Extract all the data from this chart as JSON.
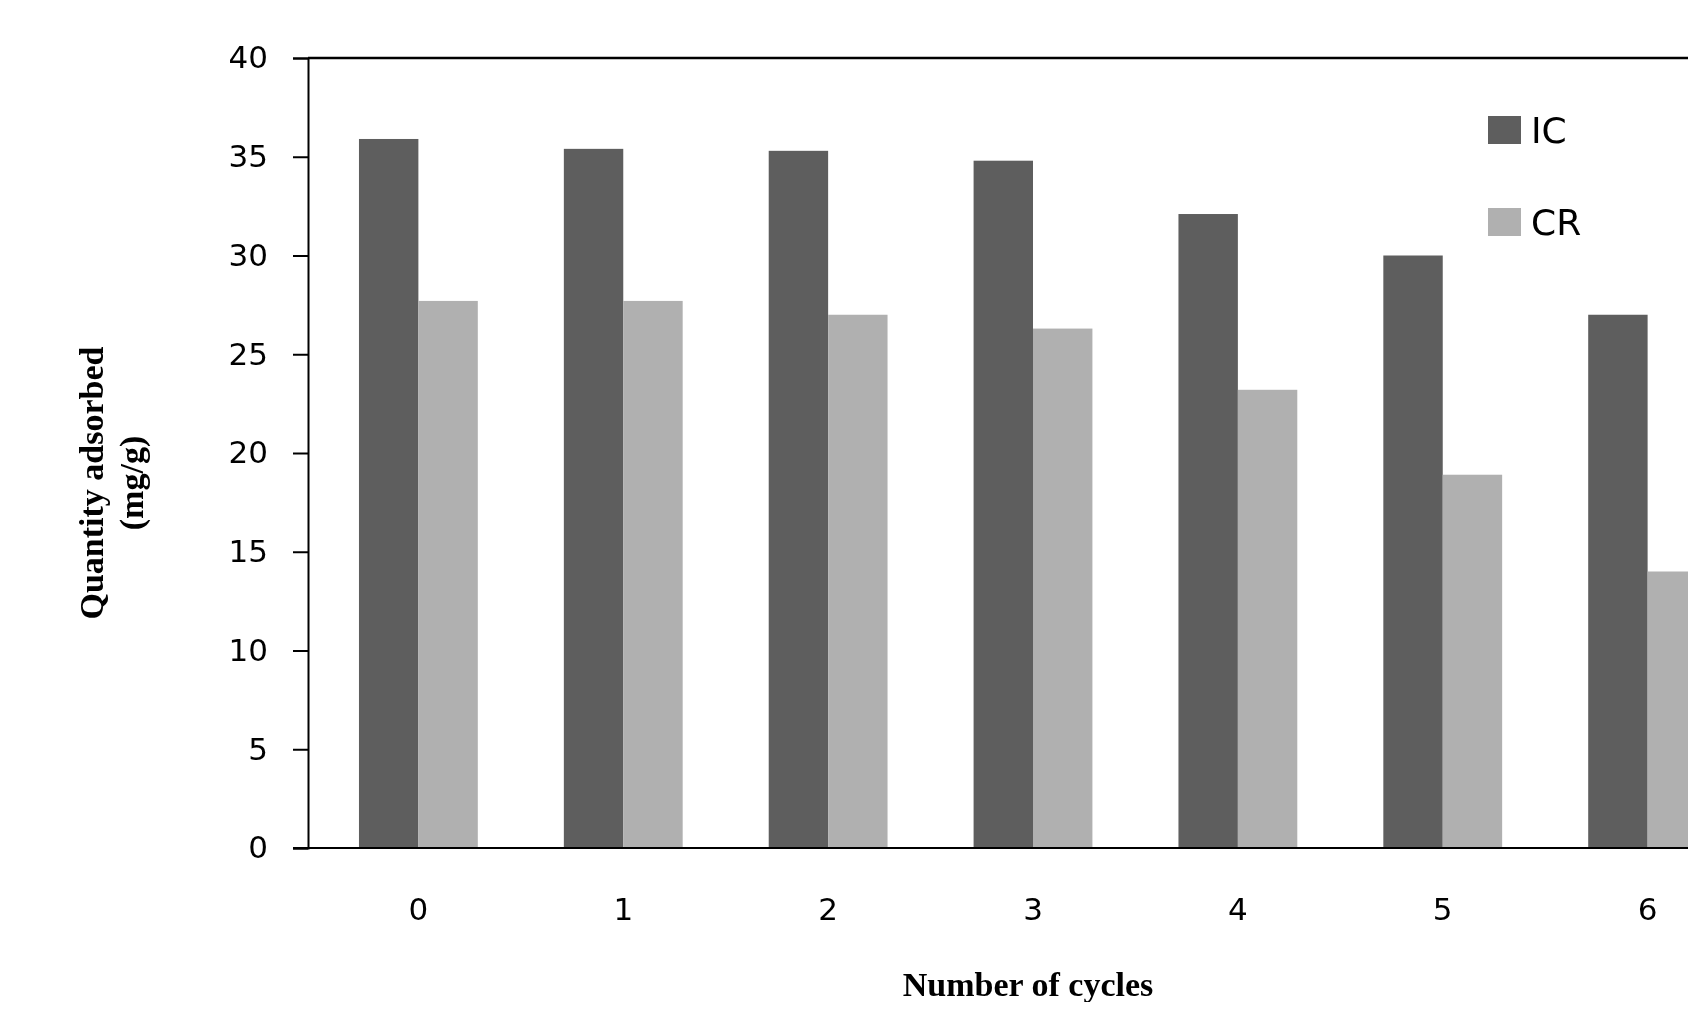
{
  "chart_data": {
    "type": "bar",
    "xlabel": "Number of cycles",
    "ylabel": "Quantity adsorbed (mg/g)",
    "categories": [
      "0",
      "1",
      "2",
      "3",
      "4",
      "5",
      "6"
    ],
    "series": [
      {
        "name": "IC",
        "color": "#5e5e5e",
        "values": [
          35.9,
          35.4,
          35.3,
          34.8,
          32.1,
          30.0,
          27.0
        ]
      },
      {
        "name": "CR",
        "color": "#b0b0b0",
        "values": [
          27.7,
          27.7,
          27.0,
          26.3,
          23.2,
          18.9,
          14.0
        ]
      }
    ],
    "ylim": [
      0,
      40
    ],
    "yticks": [
      0,
      5,
      10,
      15,
      20,
      25,
      30,
      35,
      40
    ],
    "grid": false,
    "legend": "top right"
  }
}
